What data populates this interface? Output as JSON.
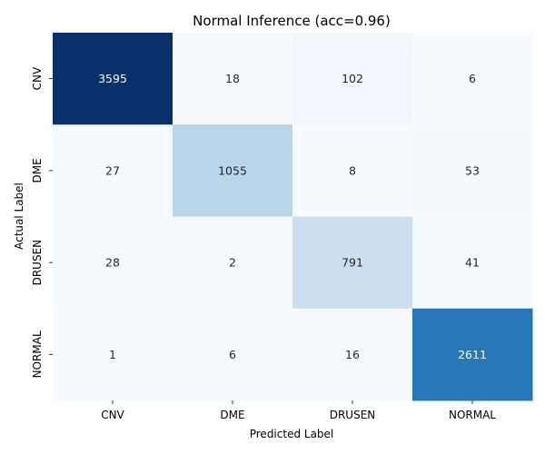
{
  "chart_data": {
    "type": "heatmap",
    "title": "Normal Inference (acc=0.96)",
    "xlabel": "Predicted Label",
    "ylabel": "Actual Label",
    "x_categories": [
      "CNV",
      "DME",
      "DRUSEN",
      "NORMAL"
    ],
    "y_categories": [
      "CNV",
      "DME",
      "DRUSEN",
      "NORMAL"
    ],
    "values": [
      [
        3595,
        18,
        102,
        6
      ],
      [
        27,
        1055,
        8,
        53
      ],
      [
        28,
        2,
        791,
        41
      ],
      [
        1,
        6,
        16,
        2611
      ]
    ],
    "colormap": "Blues",
    "value_range": [
      0,
      3595
    ],
    "colorbar": false,
    "grid": false
  }
}
